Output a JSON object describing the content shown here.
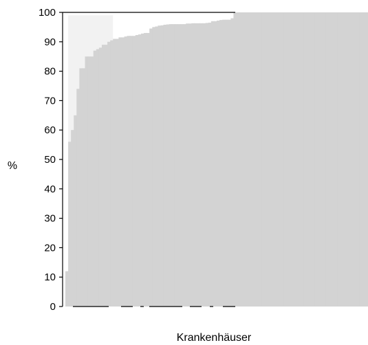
{
  "chart_data": {
    "type": "bar",
    "title": "",
    "xlabel": "Krankenhäuser",
    "ylabel": "%",
    "ylim": [
      0,
      100
    ],
    "yticks": [
      0,
      10,
      20,
      30,
      40,
      50,
      60,
      70,
      80,
      90,
      100
    ],
    "grid": false,
    "legend": "none",
    "colors": {
      "bars": "#d3d3d3",
      "background_band": "#f2f2f2",
      "axis": "#000000"
    },
    "values": [
      12,
      56,
      60,
      65,
      74,
      81,
      81,
      85,
      85,
      85,
      87,
      87.5,
      88,
      89,
      89,
      90,
      90.5,
      91,
      91,
      91.5,
      91.5,
      91.8,
      92,
      92,
      92,
      92.3,
      92.5,
      92.8,
      93,
      93,
      94.5,
      95,
      95.2,
      95.5,
      95.6,
      95.8,
      95.9,
      96,
      96,
      96,
      96,
      96,
      96,
      96.2,
      96.2,
      96.3,
      96.3,
      96.3,
      96.3,
      96.3,
      96.4,
      96.5,
      97,
      97,
      97.2,
      97.4,
      97.5,
      97.5,
      97.5,
      98,
      100,
      100,
      100,
      100,
      100,
      100,
      100,
      100,
      100,
      100,
      100,
      100,
      100,
      100,
      100,
      100,
      100,
      100,
      100,
      100,
      100,
      100,
      100,
      100,
      100,
      100,
      100,
      100,
      100,
      100,
      100,
      100,
      100,
      100,
      100,
      100,
      100,
      100,
      100,
      100,
      100,
      100,
      100,
      100,
      100,
      100,
      100,
      100
    ],
    "background_band": {
      "from_index": 1,
      "to_index": 17,
      "value": 99
    }
  }
}
